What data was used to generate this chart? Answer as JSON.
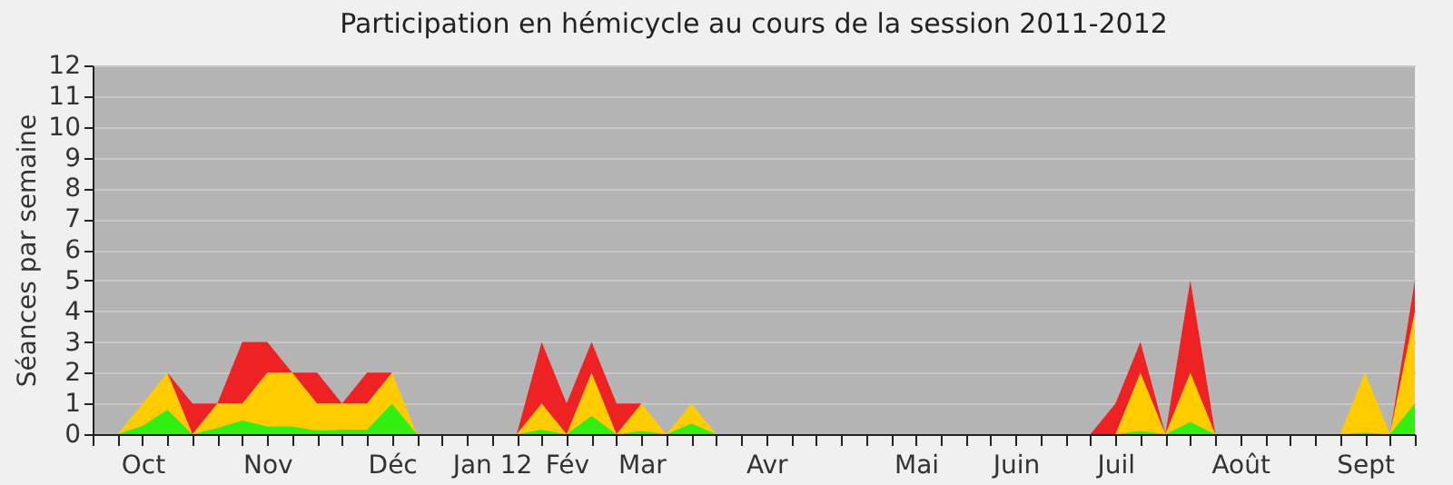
{
  "chart_data": {
    "type": "area",
    "title": "Participation en hémicycle au cours de la session 2011-2012",
    "ylabel": "Séances par semaine",
    "stacked": true,
    "grid": "y",
    "categories": [
      null,
      null,
      "Oct",
      null,
      null,
      null,
      null,
      "Nov",
      null,
      null,
      null,
      null,
      "Déc",
      null,
      null,
      null,
      "Jan 12",
      null,
      null,
      "Fév",
      null,
      null,
      "Mar",
      null,
      null,
      null,
      null,
      "Avr",
      null,
      null,
      null,
      null,
      null,
      "Mai",
      null,
      null,
      null,
      "Juin",
      null,
      null,
      null,
      "Juil",
      null,
      null,
      null,
      null,
      "Août",
      null,
      null,
      null,
      null,
      "Sept",
      null,
      null
    ],
    "series": [
      {
        "color": "#33ee11",
        "values": [
          null,
          0,
          0.27,
          0.8,
          0,
          0.2,
          0.45,
          0.25,
          0.25,
          0.12,
          0.15,
          0.15,
          1,
          0,
          0,
          0,
          0,
          0,
          0.15,
          0,
          0.6,
          0,
          0.1,
          0,
          0.35,
          0,
          0,
          0,
          0,
          0,
          0,
          0,
          0,
          0,
          0,
          0,
          0,
          0,
          0,
          0,
          0,
          0,
          0.1,
          0,
          0.4,
          0,
          0,
          0,
          0,
          0,
          0,
          0.05,
          0,
          1
        ]
      },
      {
        "color": "#ffcc00",
        "values": [
          null,
          0,
          0.73,
          1.2,
          0,
          0.8,
          0.55,
          1.75,
          1.75,
          0.88,
          0.85,
          0.85,
          1,
          0,
          0,
          0,
          0,
          0,
          0.85,
          0,
          1.4,
          0,
          0.9,
          0,
          0.65,
          0,
          0,
          0,
          0,
          0,
          0,
          0,
          0,
          0,
          0,
          0,
          0,
          0,
          0,
          0,
          0,
          0,
          1.9,
          0,
          1.6,
          0,
          0,
          0,
          0,
          0,
          0,
          1.95,
          0,
          3
        ]
      },
      {
        "color": "#ee2222",
        "values": [
          null,
          0,
          0,
          0,
          1,
          0,
          2,
          1,
          0,
          1,
          0,
          1,
          0,
          0,
          0,
          0,
          0,
          0,
          2,
          1,
          1,
          1,
          0,
          0,
          0,
          0,
          0,
          0,
          0,
          0,
          0,
          0,
          0,
          0,
          0,
          0,
          0,
          0,
          0,
          0,
          0,
          1,
          1,
          0,
          3,
          0,
          0,
          0,
          0,
          0,
          0,
          0,
          0,
          1
        ]
      }
    ],
    "ylim": [
      0,
      12
    ],
    "yticks": [
      0,
      1,
      2,
      3,
      4,
      5,
      6,
      7,
      8,
      9,
      10,
      11,
      12
    ]
  }
}
